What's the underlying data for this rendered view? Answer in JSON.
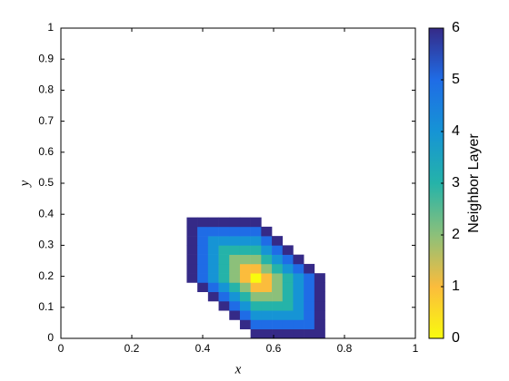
{
  "chart_data": {
    "type": "heatmap",
    "xlabel": "x",
    "ylabel": "y",
    "colorbar_label": "Neighbor Layer",
    "x": [
      0.37,
      0.4,
      0.43,
      0.46,
      0.49,
      0.52,
      0.55,
      0.58,
      0.61,
      0.64,
      0.67,
      0.7,
      0.73
    ],
    "y": [
      0.015,
      0.045,
      0.075,
      0.105,
      0.135,
      0.165,
      0.195,
      0.225,
      0.255,
      0.285,
      0.315,
      0.345,
      0.375
    ],
    "z": [
      [
        null,
        null,
        null,
        null,
        null,
        null,
        6,
        6,
        6,
        6,
        6,
        6,
        6
      ],
      [
        null,
        null,
        null,
        null,
        null,
        6,
        5,
        5,
        5,
        5,
        5,
        5,
        6
      ],
      [
        null,
        null,
        null,
        null,
        6,
        5,
        4,
        4,
        4,
        4,
        4,
        5,
        6
      ],
      [
        null,
        null,
        null,
        6,
        5,
        4,
        3,
        3,
        3,
        3,
        4,
        5,
        6
      ],
      [
        null,
        null,
        6,
        5,
        4,
        3,
        2,
        2,
        2,
        3,
        4,
        5,
        6
      ],
      [
        null,
        6,
        5,
        4,
        3,
        2,
        1,
        1,
        2,
        3,
        4,
        5,
        6
      ],
      [
        6,
        5,
        4,
        3,
        2,
        1,
        0,
        1,
        2,
        3,
        4,
        5,
        6
      ],
      [
        6,
        5,
        4,
        3,
        2,
        1,
        1,
        2,
        3,
        4,
        5,
        6,
        null
      ],
      [
        6,
        5,
        4,
        3,
        2,
        2,
        2,
        3,
        4,
        5,
        6,
        null,
        null
      ],
      [
        6,
        5,
        4,
        3,
        3,
        3,
        3,
        4,
        5,
        6,
        null,
        null,
        null
      ],
      [
        6,
        5,
        4,
        4,
        4,
        4,
        4,
        5,
        6,
        null,
        null,
        null,
        null
      ],
      [
        6,
        5,
        5,
        5,
        5,
        5,
        5,
        6,
        null,
        null,
        null,
        null,
        null
      ],
      [
        6,
        6,
        6,
        6,
        6,
        6,
        6,
        null,
        null,
        null,
        null,
        null,
        null
      ]
    ],
    "colormap": [
      "#f9fb0e",
      "#fbbc3c",
      "#8cc07a",
      "#25b3a9",
      "#1694d5",
      "#1f6ce6",
      "#352a87"
    ],
    "xlim": [
      0,
      1
    ],
    "xticks": [
      0,
      0.2,
      0.4,
      0.6,
      0.8,
      1
    ],
    "ylim": [
      0,
      1
    ],
    "yticks": [
      0,
      0.1,
      0.2,
      0.3,
      0.4,
      0.5,
      0.6,
      0.7,
      0.8,
      0.9,
      1
    ],
    "zlim": [
      0,
      6
    ],
    "zticks": [
      0,
      1,
      2,
      3,
      4,
      5,
      6
    ]
  }
}
